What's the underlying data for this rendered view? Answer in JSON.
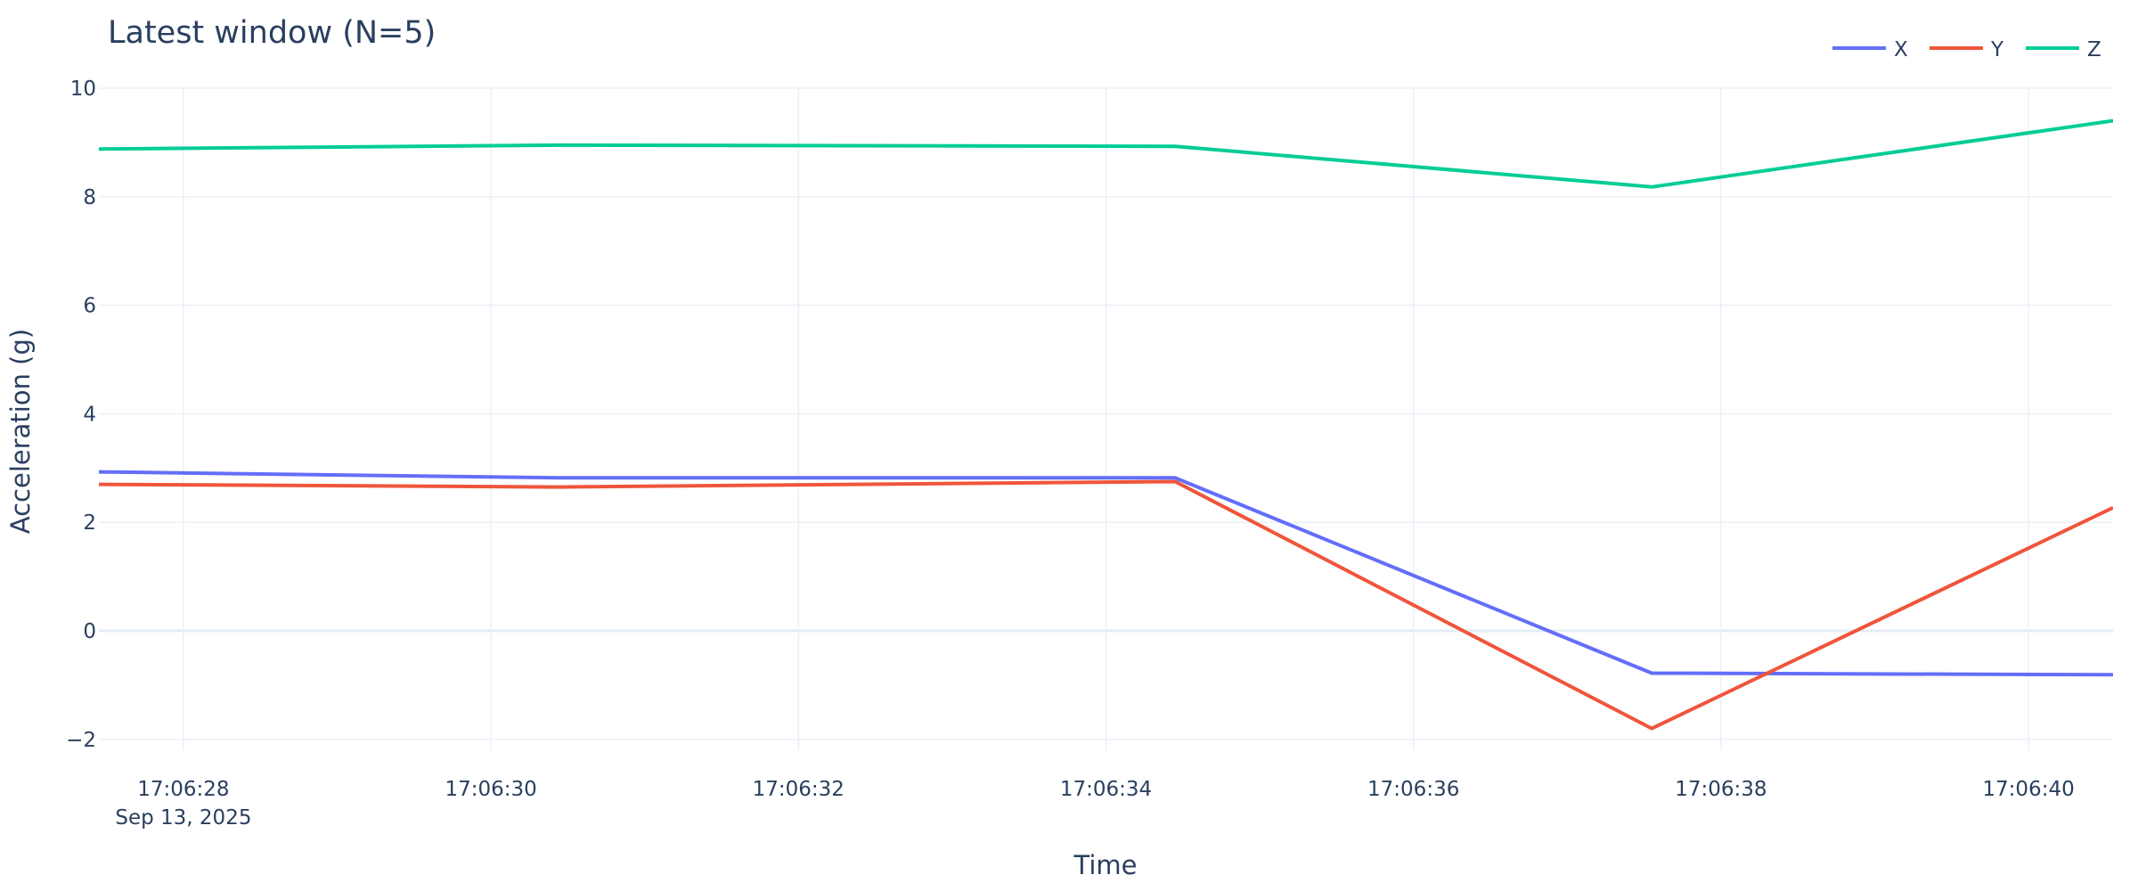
{
  "chart_data": {
    "type": "line",
    "title": "Latest window (N=5)",
    "xlabel": "Time",
    "ylabel": "Acceleration (g)",
    "x": [
      "17:06:27.45",
      "17:06:30.45",
      "17:06:34.45",
      "17:06:37.55",
      "17:06:40.55"
    ],
    "xlim": [
      "17:06:27.45",
      "17:06:40.55"
    ],
    "ylim": [
      -2.2,
      10
    ],
    "x_ticks": [
      "17:06:28",
      "17:06:30",
      "17:06:32",
      "17:06:34",
      "17:06:36",
      "17:06:38",
      "17:06:40"
    ],
    "x_tick_date": "Sep 13, 2025",
    "y_ticks": [
      -2,
      0,
      2,
      4,
      6,
      8,
      10
    ],
    "y_tick_labels": [
      "−2",
      "0",
      "2",
      "4",
      "6",
      "8",
      "10"
    ],
    "grid": true,
    "legend": "top-right",
    "series": [
      {
        "name": "X",
        "color": "#636efa",
        "values": [
          2.93,
          2.82,
          2.82,
          -0.78,
          -0.81
        ]
      },
      {
        "name": "Y",
        "color": "#ef553b",
        "values": [
          2.7,
          2.65,
          2.75,
          -1.8,
          2.27
        ]
      },
      {
        "name": "Z",
        "color": "#00cc96",
        "values": [
          8.88,
          8.95,
          8.93,
          8.18,
          9.4
        ]
      }
    ]
  }
}
